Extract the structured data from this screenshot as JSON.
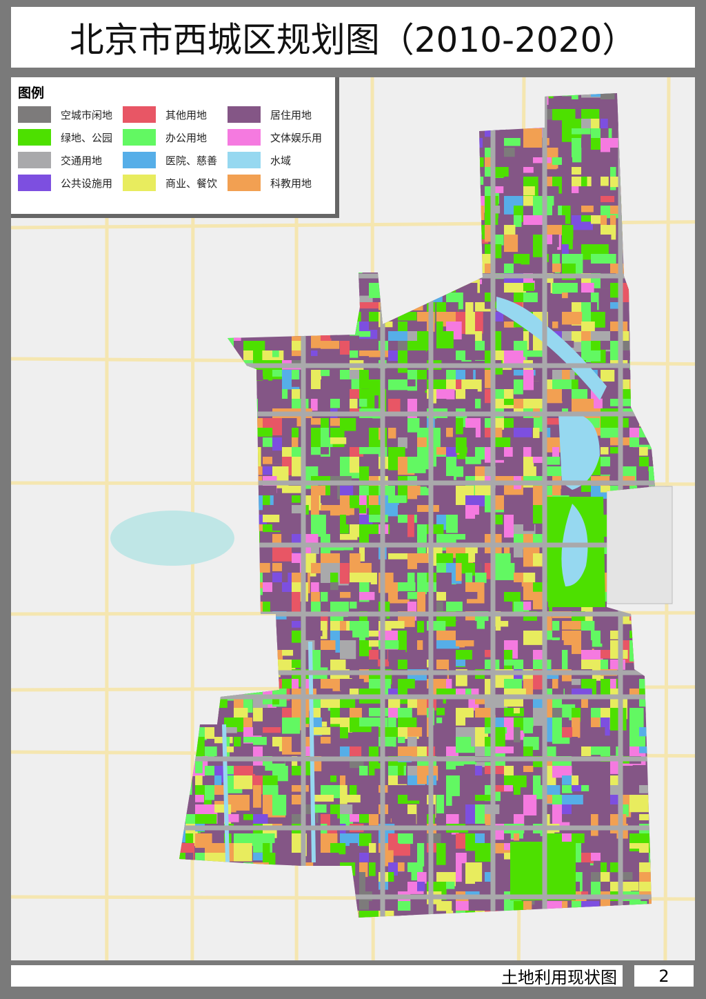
{
  "title": "北京市西城区规划图（2010-2020）",
  "legend": {
    "title": "图例",
    "items": [
      {
        "label": "空城市闲地",
        "color": "#7d7b7b"
      },
      {
        "label": "绿地、公园",
        "color": "#4de000"
      },
      {
        "label": "交通用地",
        "color": "#a9a9ab"
      },
      {
        "label": "公共设施用",
        "color": "#7d4fe0"
      },
      {
        "label": "其他用地",
        "color": "#e85665"
      },
      {
        "label": "办公用地",
        "color": "#62f862"
      },
      {
        "label": "医院、慈善",
        "color": "#56aee8"
      },
      {
        "label": "商业、餐饮",
        "color": "#e8ec5e"
      },
      {
        "label": "居住用地",
        "color": "#845686"
      },
      {
        "label": "文体娱乐用",
        "color": "#f57ae0"
      },
      {
        "label": "水域",
        "color": "#96d8f0"
      },
      {
        "label": "科教用地",
        "color": "#f2a052"
      }
    ]
  },
  "footer": {
    "map_name": "土地利用现状图",
    "page": "2"
  }
}
